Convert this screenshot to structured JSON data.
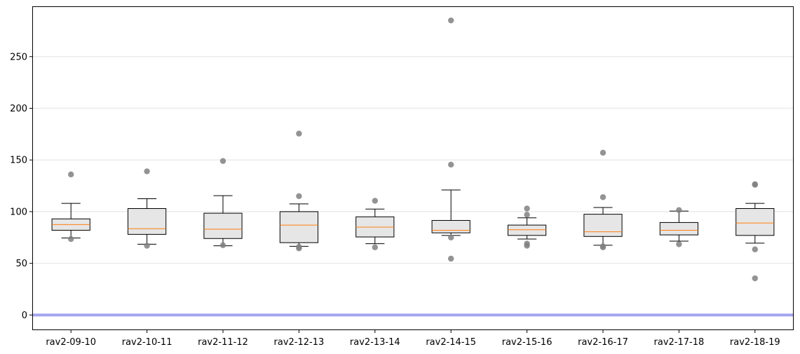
{
  "chart_data": {
    "type": "box",
    "title": "",
    "xlabel": "",
    "ylabel": "",
    "ylim": [
      -14,
      298
    ],
    "yticks": [
      0,
      50,
      100,
      150,
      200,
      250
    ],
    "grid": "horizontal",
    "reference_line": {
      "y": 0,
      "color": "#a3a3ee"
    },
    "colors": {
      "box_fill": "#e6e6e6",
      "median": "#ff7f0e",
      "outlier": "#808080"
    },
    "categories": [
      "rav2-09-10",
      "rav2-10-11",
      "rav2-11-12",
      "rav2-12-13",
      "rav2-13-14",
      "rav2-14-15",
      "rav2-15-16",
      "rav2-16-17",
      "rav2-17-18",
      "rav2-18-19"
    ],
    "boxes": [
      {
        "whislo": 74.5,
        "q1": 82,
        "med": 87.5,
        "q3": 93,
        "whishi": 108,
        "fliers": [
          136,
          73.5
        ]
      },
      {
        "whislo": 68.5,
        "q1": 78,
        "med": 83.5,
        "q3": 103,
        "whishi": 112.5,
        "fliers": [
          139,
          67
        ]
      },
      {
        "whislo": 67,
        "q1": 74,
        "med": 83,
        "q3": 98.5,
        "whishi": 115.5,
        "fliers": [
          149,
          67.5
        ]
      },
      {
        "whislo": 66.5,
        "q1": 70,
        "med": 87,
        "q3": 100,
        "whishi": 107.5,
        "fliers": [
          175.5,
          115,
          66,
          64.5
        ]
      },
      {
        "whislo": 69,
        "q1": 75.5,
        "med": 85,
        "q3": 95,
        "whishi": 102.5,
        "fliers": [
          110.5,
          65.5
        ]
      },
      {
        "whislo": 77,
        "q1": 79.5,
        "med": 82,
        "q3": 91.5,
        "whishi": 121,
        "fliers": [
          285,
          145.5,
          75,
          54.5
        ]
      },
      {
        "whislo": 73.5,
        "q1": 77,
        "med": 82.5,
        "q3": 87,
        "whishi": 94,
        "fliers": [
          103,
          97,
          69,
          67
        ]
      },
      {
        "whislo": 67.5,
        "q1": 76,
        "med": 80.5,
        "q3": 97.5,
        "whishi": 104,
        "fliers": [
          157,
          114,
          66.5,
          65.5
        ]
      },
      {
        "whislo": 71.5,
        "q1": 77.5,
        "med": 82,
        "q3": 89.5,
        "whishi": 100.5,
        "fliers": [
          101.5,
          68.5
        ]
      },
      {
        "whislo": 69.5,
        "q1": 77,
        "med": 89,
        "q3": 103,
        "whishi": 108,
        "fliers": [
          126,
          126.5,
          63.5,
          35.5
        ]
      }
    ]
  }
}
